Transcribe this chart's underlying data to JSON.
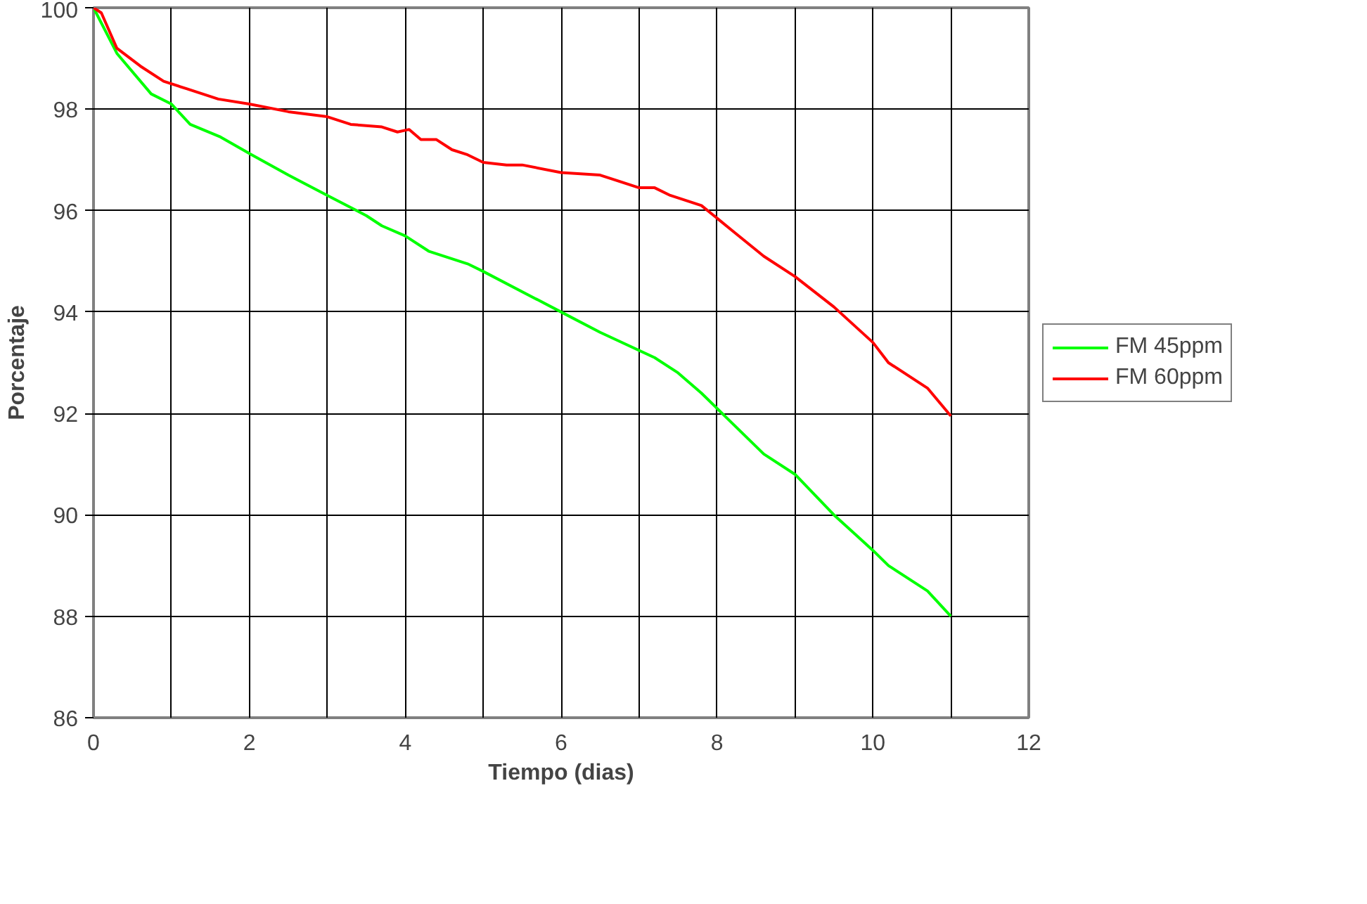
{
  "chart_data": {
    "type": "line",
    "xlabel": "Tiempo (dias)",
    "ylabel": "Porcentaje",
    "xlim": [
      0,
      12
    ],
    "ylim": [
      86,
      100
    ],
    "xticks": [
      0,
      {
        "value": 1,
        "label": null
      },
      2,
      {
        "value": 3,
        "label": null
      },
      4,
      {
        "value": 5,
        "label": null
      },
      6,
      {
        "value": 7,
        "label": null
      },
      8,
      {
        "value": 9,
        "label": null
      },
      10,
      {
        "value": 11,
        "label": null
      },
      12
    ],
    "yticks": [
      86,
      88,
      90,
      92,
      94,
      96,
      98,
      100
    ],
    "grid": true,
    "legend": "right",
    "marker": "none",
    "line_style": "solid",
    "series": [
      {
        "name": "FM 45ppm",
        "color": "#00ff00",
        "x": [
          0,
          0.3,
          0.74,
          1.0,
          1.24,
          1.63,
          2.03,
          2.5,
          3,
          3.5,
          3.7,
          4,
          4.3,
          4.8,
          5,
          6,
          6.5,
          7.2,
          7.5,
          7.8,
          8.2,
          8.6,
          9,
          9.5,
          10,
          10.2,
          10.7,
          11
        ],
        "values": [
          100,
          99.1,
          98.3,
          98.1,
          97.7,
          97.45,
          97.1,
          96.7,
          96.3,
          95.9,
          95.7,
          95.5,
          95.2,
          94.95,
          94.8,
          94.0,
          93.6,
          93.1,
          92.8,
          92.4,
          91.8,
          91.2,
          90.8,
          90.0,
          89.3,
          89.0,
          88.5,
          88.0
        ]
      },
      {
        "name": "FM 60ppm",
        "color": "#ff0000",
        "x": [
          0,
          0.1,
          0.3,
          0.6,
          0.9,
          1.2,
          1.6,
          2,
          2.5,
          3,
          3.3,
          3.7,
          3.9,
          4.05,
          4.2,
          4.4,
          4.6,
          4.8,
          5,
          5.3,
          5.5,
          6,
          6.5,
          7,
          7.2,
          7.4,
          7.8,
          8,
          8.2,
          8.6,
          9,
          9.5,
          10,
          10.2,
          10.7,
          11
        ],
        "values": [
          100,
          99.9,
          99.2,
          98.85,
          98.55,
          98.4,
          98.2,
          98.1,
          97.95,
          97.85,
          97.7,
          97.65,
          97.55,
          97.6,
          97.4,
          97.4,
          97.2,
          97.1,
          96.95,
          96.9,
          96.9,
          96.75,
          96.7,
          96.45,
          96.45,
          96.3,
          96.1,
          95.85,
          95.6,
          95.1,
          94.7,
          94.1,
          93.4,
          93.0,
          92.5,
          91.95
        ]
      }
    ]
  }
}
